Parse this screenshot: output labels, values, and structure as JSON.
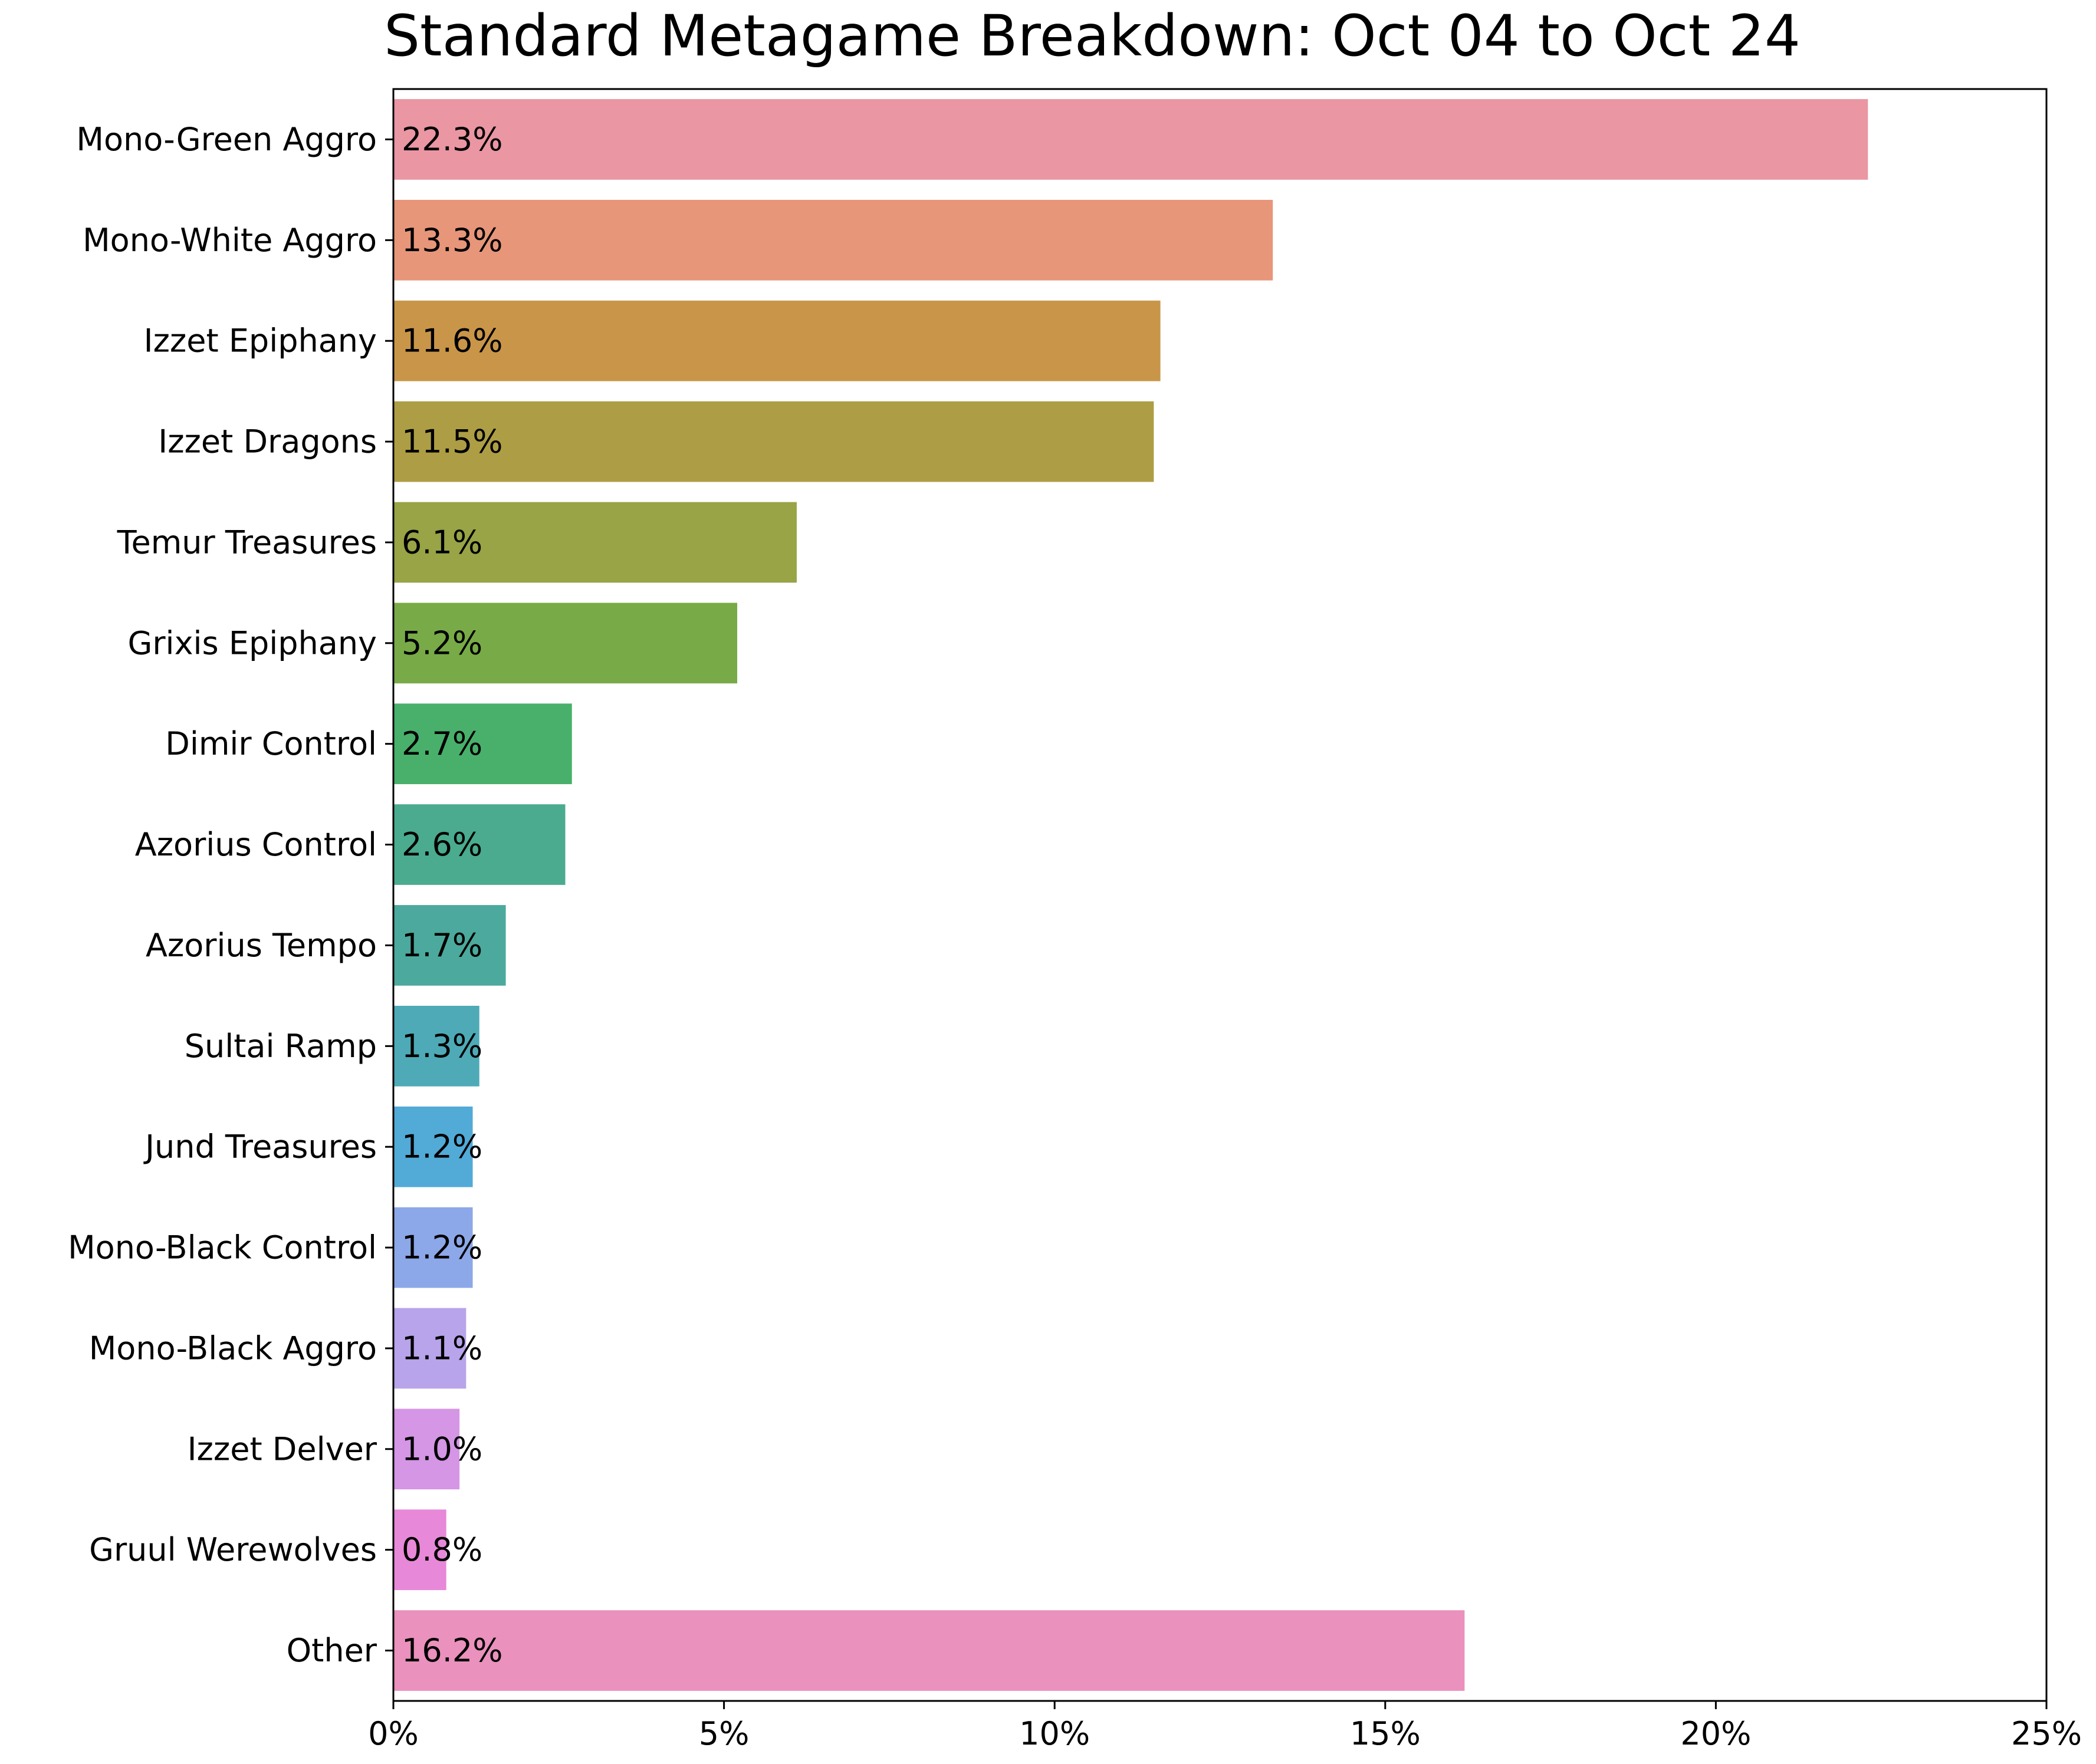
{
  "chart_data": {
    "type": "bar",
    "orientation": "horizontal",
    "title": "Standard Metagame Breakdown: Oct 04 to Oct 24",
    "xlabel": "",
    "ylabel": "",
    "xlim": [
      0,
      25
    ],
    "x_ticks": [
      0,
      5,
      10,
      15,
      20,
      25
    ],
    "x_tick_labels": [
      "0%",
      "5%",
      "10%",
      "15%",
      "20%",
      "25%"
    ],
    "grid": false,
    "legend": "none",
    "categories": [
      "Mono-Green Aggro",
      "Mono-White Aggro",
      "Izzet Epiphany",
      "Izzet Dragons",
      "Temur Treasures",
      "Grixis Epiphany",
      "Dimir Control",
      "Azorius Control",
      "Azorius Tempo",
      "Sultai Ramp",
      "Jund Treasures",
      "Mono-Black Control",
      "Mono-Black Aggro",
      "Izzet Delver",
      "Gruul Werewolves",
      "Other"
    ],
    "values": [
      22.3,
      13.3,
      11.6,
      11.5,
      6.1,
      5.2,
      2.7,
      2.6,
      1.7,
      1.3,
      1.2,
      1.2,
      1.1,
      1.0,
      0.8,
      16.2
    ],
    "value_labels": [
      "22.3%",
      "13.3%",
      "11.6%",
      "11.5%",
      "6.1%",
      "5.2%",
      "2.7%",
      "2.6%",
      "1.7%",
      "1.3%",
      "1.2%",
      "1.2%",
      "1.1%",
      "1.0%",
      "0.8%",
      "16.2%"
    ],
    "colors": [
      "#ea96a3",
      "#e7967a",
      "#c99649",
      "#ad9e45",
      "#98a445",
      "#78ab47",
      "#48b06a",
      "#4aab8e",
      "#4ca99d",
      "#4eaab7",
      "#52aad7",
      "#8ca8e8",
      "#b7a4ea",
      "#d496e5",
      "#e888d8",
      "#ea91bd"
    ]
  }
}
